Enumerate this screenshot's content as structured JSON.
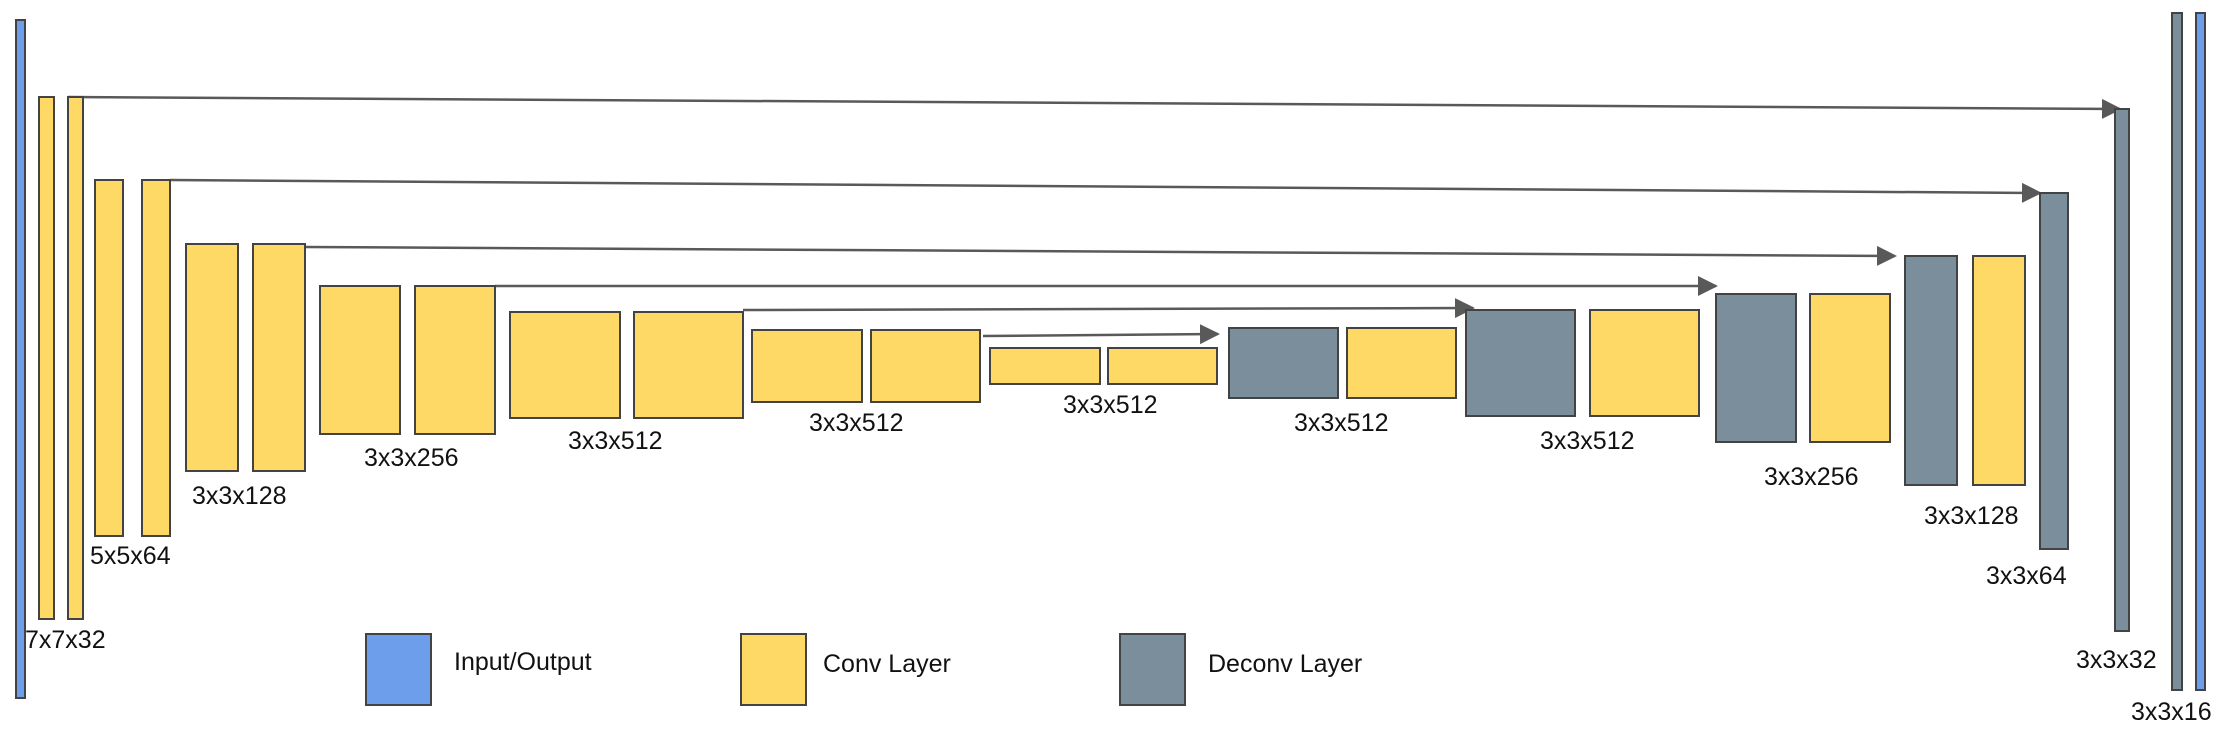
{
  "colors": {
    "io": "#6d9eeb",
    "conv": "#ffd966",
    "deconv": "#7a8f9b",
    "stroke": "#434343",
    "arrow": "#595959"
  },
  "layer_labels": {
    "l7x7x32": "7x7x32",
    "l5x5x64": "5x5x64",
    "l3x3x128_enc": "3x3x128",
    "l3x3x256_enc": "3x3x256",
    "l3x3x512_a": "3x3x512",
    "l3x3x512_b": "3x3x512",
    "l3x3x512_c": "3x3x512",
    "l3x3x512_d": "3x3x512",
    "l3x3x512_e": "3x3x512",
    "l3x3x256_dec": "3x3x256",
    "l3x3x128_dec": "3x3x128",
    "l3x3x64": "3x3x64",
    "l3x3x32": "3x3x32",
    "l3x3x16": "3x3x16"
  },
  "legend": [
    {
      "key": "io",
      "label": "Input/Output"
    },
    {
      "key": "conv",
      "label": "Conv Layer"
    },
    {
      "key": "deconv",
      "label": "Deconv Layer"
    }
  ]
}
